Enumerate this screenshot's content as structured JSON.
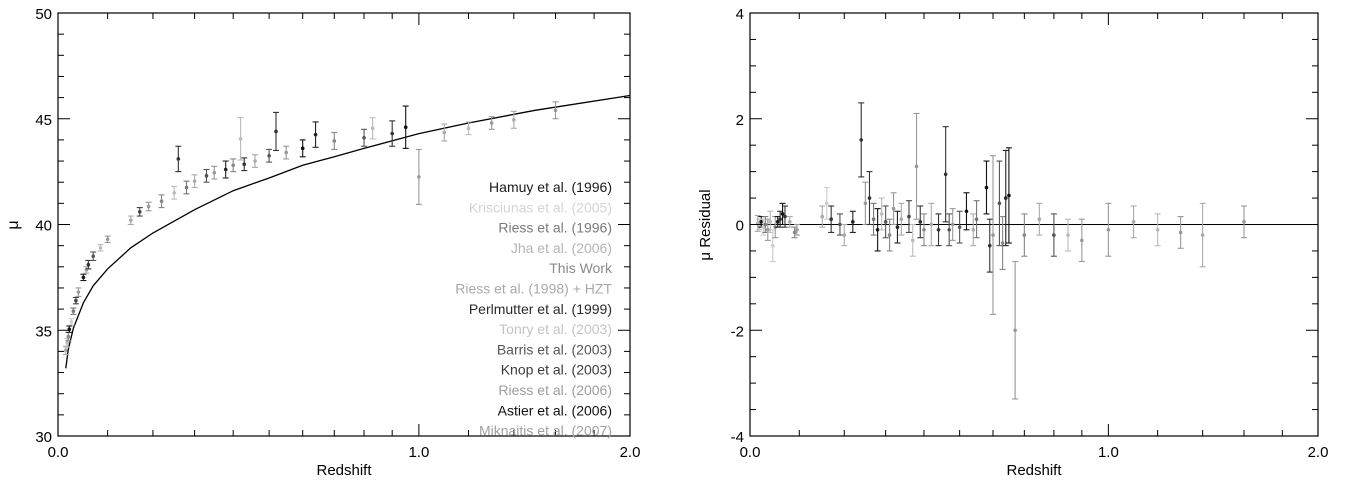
{
  "chart_data": [
    {
      "type": "scatter",
      "xlabel": "Redshift",
      "ylabel": "μ",
      "xscale": "log(1+z)",
      "xlim": [
        0.0,
        2.0
      ],
      "ylim": [
        30,
        50
      ],
      "x_ticks": [
        "0.0",
        "1.0",
        "2.0"
      ],
      "y_ticks": [
        "30",
        "35",
        "40",
        "45",
        "50"
      ],
      "legend_position": "lower-right (inside)",
      "legend": [
        {
          "name": "Hamuy et al. (1996)",
          "color": "#1a1a1a"
        },
        {
          "name": "Krisciunas et al. (2005)",
          "color": "#d4d4d4"
        },
        {
          "name": "Riess et al. (1996)",
          "color": "#7a7a7a"
        },
        {
          "name": "Jha et al. (2006)",
          "color": "#b5b5b5"
        },
        {
          "name": "This Work",
          "color": "#8a8a8a"
        },
        {
          "name": "Riess et al. (1998) + HZT",
          "color": "#a8a8a8"
        },
        {
          "name": "Perlmutter et al. (1999)",
          "color": "#2a2a2a"
        },
        {
          "name": "Tonry et al. (2003)",
          "color": "#c4c4c4"
        },
        {
          "name": "Barris et al. (2003)",
          "color": "#555555"
        },
        {
          "name": "Knop et al. (2003)",
          "color": "#3a3a3a"
        },
        {
          "name": "Riess et al. (2006)",
          "color": "#9e9e9e"
        },
        {
          "name": "Astier et al. (2006)",
          "color": "#111111"
        },
        {
          "name": "Miknaitis et al. (2007)",
          "color": "#a0a0a0"
        }
      ],
      "model_curve": {
        "z": [
          0.015,
          0.02,
          0.03,
          0.05,
          0.07,
          0.1,
          0.15,
          0.2,
          0.3,
          0.4,
          0.5,
          0.6,
          0.7,
          0.8,
          1.0,
          1.2,
          1.5,
          2.0
        ],
        "mu": [
          33.2,
          34.1,
          35.1,
          36.3,
          37.1,
          37.9,
          38.9,
          39.6,
          40.7,
          41.6,
          42.2,
          42.8,
          43.2,
          43.6,
          44.3,
          44.8,
          45.4,
          46.1
        ]
      },
      "points": [
        {
          "z": 0.015,
          "mu": 34.05,
          "err": 0.2,
          "color": "#aaaaaa"
        },
        {
          "z": 0.018,
          "mu": 34.4,
          "err": 0.2,
          "color": "#bbbbbb"
        },
        {
          "z": 0.02,
          "mu": 34.7,
          "err": 0.2,
          "color": "#888888"
        },
        {
          "z": 0.022,
          "mu": 35.05,
          "err": 0.15,
          "color": "#1a1a1a"
        },
        {
          "z": 0.026,
          "mu": 35.4,
          "err": 0.15,
          "color": "#cccccc"
        },
        {
          "z": 0.03,
          "mu": 35.9,
          "err": 0.15,
          "color": "#7a7a7a"
        },
        {
          "z": 0.035,
          "mu": 36.4,
          "err": 0.15,
          "color": "#444444"
        },
        {
          "z": 0.04,
          "mu": 36.8,
          "err": 0.2,
          "color": "#999999"
        },
        {
          "z": 0.05,
          "mu": 37.5,
          "err": 0.15,
          "color": "#1a1a1a"
        },
        {
          "z": 0.056,
          "mu": 37.85,
          "err": 0.15,
          "color": "#aaaaaa"
        },
        {
          "z": 0.06,
          "mu": 38.1,
          "err": 0.2,
          "color": "#333333"
        },
        {
          "z": 0.07,
          "mu": 38.5,
          "err": 0.2,
          "color": "#555555"
        },
        {
          "z": 0.085,
          "mu": 38.9,
          "err": 0.15,
          "color": "#bbbbbb"
        },
        {
          "z": 0.1,
          "mu": 39.3,
          "err": 0.15,
          "color": "#999999"
        },
        {
          "z": 0.15,
          "mu": 40.2,
          "err": 0.2,
          "color": "#aaaaaa"
        },
        {
          "z": 0.17,
          "mu": 40.6,
          "err": 0.2,
          "color": "#444444"
        },
        {
          "z": 0.19,
          "mu": 40.85,
          "err": 0.2,
          "color": "#999999"
        },
        {
          "z": 0.22,
          "mu": 41.1,
          "err": 0.3,
          "color": "#888888"
        },
        {
          "z": 0.25,
          "mu": 41.5,
          "err": 0.3,
          "color": "#bbbbbb"
        },
        {
          "z": 0.26,
          "mu": 43.1,
          "err": 0.6,
          "color": "#333333"
        },
        {
          "z": 0.28,
          "mu": 41.75,
          "err": 0.3,
          "color": "#777777"
        },
        {
          "z": 0.3,
          "mu": 42.05,
          "err": 0.3,
          "color": "#aaaaaa"
        },
        {
          "z": 0.33,
          "mu": 42.3,
          "err": 0.3,
          "color": "#555555"
        },
        {
          "z": 0.35,
          "mu": 42.45,
          "err": 0.3,
          "color": "#999999"
        },
        {
          "z": 0.38,
          "mu": 42.6,
          "err": 0.4,
          "color": "#222222"
        },
        {
          "z": 0.4,
          "mu": 42.8,
          "err": 0.3,
          "color": "#888888"
        },
        {
          "z": 0.42,
          "mu": 44.05,
          "err": 1.0,
          "color": "#bbbbbb"
        },
        {
          "z": 0.43,
          "mu": 42.85,
          "err": 0.3,
          "color": "#333333"
        },
        {
          "z": 0.46,
          "mu": 43.0,
          "err": 0.3,
          "color": "#aaaaaa"
        },
        {
          "z": 0.5,
          "mu": 43.25,
          "err": 0.3,
          "color": "#555555"
        },
        {
          "z": 0.52,
          "mu": 44.4,
          "err": 0.9,
          "color": "#333333"
        },
        {
          "z": 0.55,
          "mu": 43.4,
          "err": 0.3,
          "color": "#999999"
        },
        {
          "z": 0.6,
          "mu": 43.6,
          "err": 0.4,
          "color": "#111111"
        },
        {
          "z": 0.64,
          "mu": 44.25,
          "err": 0.6,
          "color": "#222222"
        },
        {
          "z": 0.7,
          "mu": 43.95,
          "err": 0.4,
          "color": "#888888"
        },
        {
          "z": 0.8,
          "mu": 44.1,
          "err": 0.4,
          "color": "#555555"
        },
        {
          "z": 0.83,
          "mu": 44.55,
          "err": 0.5,
          "color": "#bbbbbb"
        },
        {
          "z": 0.9,
          "mu": 44.3,
          "err": 0.6,
          "color": "#333333"
        },
        {
          "z": 0.95,
          "mu": 44.6,
          "err": 1.0,
          "color": "#111111"
        },
        {
          "z": 1.0,
          "mu": 42.25,
          "err": 1.3,
          "color": "#999999"
        },
        {
          "z": 1.1,
          "mu": 44.35,
          "err": 0.4,
          "color": "#aaaaaa"
        },
        {
          "z": 1.2,
          "mu": 44.55,
          "err": 0.3,
          "color": "#bbbbbb"
        },
        {
          "z": 1.3,
          "mu": 44.8,
          "err": 0.3,
          "color": "#999999"
        },
        {
          "z": 1.4,
          "mu": 44.95,
          "err": 0.4,
          "color": "#aaaaaa"
        },
        {
          "z": 1.6,
          "mu": 45.4,
          "err": 0.4,
          "color": "#999999"
        }
      ]
    },
    {
      "type": "scatter",
      "xlabel": "Redshift",
      "ylabel": "μ Residual",
      "xscale": "log(1+z)",
      "xlim": [
        0.0,
        2.0
      ],
      "ylim": [
        -4,
        4
      ],
      "x_ticks": [
        "0.0",
        "1.0",
        "2.0"
      ],
      "y_ticks": [
        "-4",
        "-2",
        "0",
        "2",
        "4"
      ],
      "zero_line": 0,
      "points": [
        {
          "z": 0.015,
          "r": 0.02,
          "err": 0.15,
          "color": "#aaaaaa"
        },
        {
          "z": 0.018,
          "r": 0.0,
          "err": 0.1,
          "color": "#bbbbbb"
        },
        {
          "z": 0.022,
          "r": 0.05,
          "err": 0.1,
          "color": "#1a1a1a"
        },
        {
          "z": 0.026,
          "r": -0.05,
          "err": 0.15,
          "color": "#cccccc"
        },
        {
          "z": 0.03,
          "r": 0.0,
          "err": 0.15,
          "color": "#7a7a7a"
        },
        {
          "z": 0.035,
          "r": -0.1,
          "err": 0.2,
          "color": "#999999"
        },
        {
          "z": 0.04,
          "r": 0.05,
          "err": 0.2,
          "color": "#bbbbbb"
        },
        {
          "z": 0.045,
          "r": -0.4,
          "err": 0.3,
          "color": "#cccccc"
        },
        {
          "z": 0.05,
          "r": -0.05,
          "err": 0.2,
          "color": "#999999"
        },
        {
          "z": 0.055,
          "r": 0.05,
          "err": 0.1,
          "color": "#1a1a1a"
        },
        {
          "z": 0.06,
          "r": 0.1,
          "err": 0.15,
          "color": "#333333"
        },
        {
          "z": 0.065,
          "r": 0.2,
          "err": 0.2,
          "color": "#111111"
        },
        {
          "z": 0.07,
          "r": 0.15,
          "err": 0.2,
          "color": "#333333"
        },
        {
          "z": 0.08,
          "r": 0.05,
          "err": 0.1,
          "color": "#aaaaaa"
        },
        {
          "z": 0.09,
          "r": -0.15,
          "err": 0.1,
          "color": "#888888"
        },
        {
          "z": 0.095,
          "r": -0.1,
          "err": 0.1,
          "color": "#999999"
        },
        {
          "z": 0.15,
          "r": 0.15,
          "err": 0.2,
          "color": "#aaaaaa"
        },
        {
          "z": 0.16,
          "r": 0.4,
          "err": 0.3,
          "color": "#cccccc"
        },
        {
          "z": 0.17,
          "r": 0.1,
          "err": 0.25,
          "color": "#333333"
        },
        {
          "z": 0.19,
          "r": 0.0,
          "err": 0.2,
          "color": "#555555"
        },
        {
          "z": 0.2,
          "r": -0.2,
          "err": 0.2,
          "color": "#aaaaaa"
        },
        {
          "z": 0.22,
          "r": 0.05,
          "err": 0.2,
          "color": "#222222"
        },
        {
          "z": 0.24,
          "r": 1.6,
          "err": 0.7,
          "color": "#333333"
        },
        {
          "z": 0.25,
          "r": 0.4,
          "err": 0.4,
          "color": "#999999"
        },
        {
          "z": 0.26,
          "r": 0.5,
          "err": 0.5,
          "color": "#333333"
        },
        {
          "z": 0.27,
          "r": 0.1,
          "err": 0.3,
          "color": "#777777"
        },
        {
          "z": 0.28,
          "r": -0.1,
          "err": 0.4,
          "color": "#111111"
        },
        {
          "z": 0.29,
          "r": 0.2,
          "err": 0.3,
          "color": "#bbbbbb"
        },
        {
          "z": 0.3,
          "r": 0.05,
          "err": 0.3,
          "color": "#555555"
        },
        {
          "z": 0.31,
          "r": -0.2,
          "err": 0.3,
          "color": "#888888"
        },
        {
          "z": 0.32,
          "r": 0.3,
          "err": 0.3,
          "color": "#999999"
        },
        {
          "z": 0.33,
          "r": -0.05,
          "err": 0.3,
          "color": "#222222"
        },
        {
          "z": 0.34,
          "r": 0.1,
          "err": 0.3,
          "color": "#aaaaaa"
        },
        {
          "z": 0.36,
          "r": 0.15,
          "err": 0.3,
          "color": "#444444"
        },
        {
          "z": 0.37,
          "r": -0.3,
          "err": 0.3,
          "color": "#bbbbbb"
        },
        {
          "z": 0.38,
          "r": 1.1,
          "err": 1.0,
          "color": "#999999"
        },
        {
          "z": 0.39,
          "r": 0.05,
          "err": 0.3,
          "color": "#333333"
        },
        {
          "z": 0.4,
          "r": -0.1,
          "err": 0.3,
          "color": "#888888"
        },
        {
          "z": 0.42,
          "r": 0.0,
          "err": 0.4,
          "color": "#aaaaaa"
        },
        {
          "z": 0.44,
          "r": -0.1,
          "err": 0.3,
          "color": "#333333"
        },
        {
          "z": 0.46,
          "r": 0.95,
          "err": 0.9,
          "color": "#333333"
        },
        {
          "z": 0.47,
          "r": -0.1,
          "err": 0.3,
          "color": "#555555"
        },
        {
          "z": 0.48,
          "r": 0.0,
          "err": 0.3,
          "color": "#999999"
        },
        {
          "z": 0.5,
          "r": -0.05,
          "err": 0.3,
          "color": "#555555"
        },
        {
          "z": 0.52,
          "r": 0.25,
          "err": 0.35,
          "color": "#111111"
        },
        {
          "z": 0.54,
          "r": -0.1,
          "err": 0.3,
          "color": "#aaaaaa"
        },
        {
          "z": 0.55,
          "r": 0.1,
          "err": 0.35,
          "color": "#777777"
        },
        {
          "z": 0.58,
          "r": 0.7,
          "err": 0.5,
          "color": "#111111"
        },
        {
          "z": 0.59,
          "r": -0.4,
          "err": 0.5,
          "color": "#333333"
        },
        {
          "z": 0.6,
          "r": -0.2,
          "err": 1.5,
          "color": "#999999"
        },
        {
          "z": 0.62,
          "r": 0.4,
          "err": 0.8,
          "color": "#555555"
        },
        {
          "z": 0.63,
          "r": -0.35,
          "err": 0.5,
          "color": "#888888"
        },
        {
          "z": 0.64,
          "r": 0.5,
          "err": 0.9,
          "color": "#222222"
        },
        {
          "z": 0.65,
          "r": 0.55,
          "err": 0.9,
          "color": "#111111"
        },
        {
          "z": 0.67,
          "r": -2.0,
          "err": 1.3,
          "color": "#999999"
        },
        {
          "z": 0.7,
          "r": -0.2,
          "err": 0.4,
          "color": "#888888"
        },
        {
          "z": 0.75,
          "r": 0.1,
          "err": 0.3,
          "color": "#aaaaaa"
        },
        {
          "z": 0.8,
          "r": -0.2,
          "err": 0.4,
          "color": "#555555"
        },
        {
          "z": 0.85,
          "r": -0.2,
          "err": 0.3,
          "color": "#bbbbbb"
        },
        {
          "z": 0.9,
          "r": -0.3,
          "err": 0.4,
          "color": "#999999"
        },
        {
          "z": 1.0,
          "r": -0.1,
          "err": 0.5,
          "color": "#999999"
        },
        {
          "z": 1.1,
          "r": 0.05,
          "err": 0.3,
          "color": "#aaaaaa"
        },
        {
          "z": 1.2,
          "r": -0.1,
          "err": 0.3,
          "color": "#bbbbbb"
        },
        {
          "z": 1.3,
          "r": -0.15,
          "err": 0.3,
          "color": "#999999"
        },
        {
          "z": 1.4,
          "r": -0.2,
          "err": 0.6,
          "color": "#aaaaaa"
        },
        {
          "z": 1.6,
          "r": 0.05,
          "err": 0.3,
          "color": "#999999"
        }
      ]
    }
  ]
}
